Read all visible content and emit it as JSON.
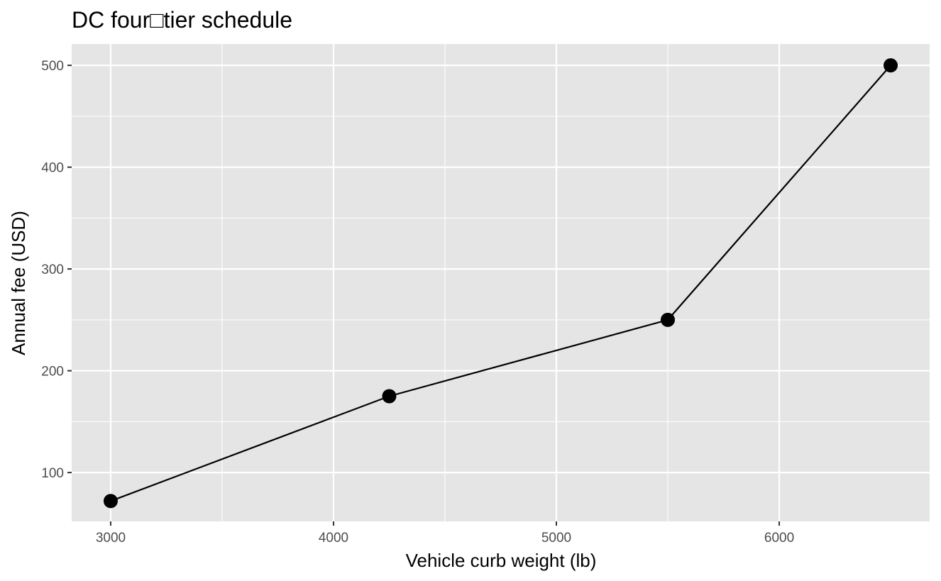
{
  "chart_data": {
    "type": "line",
    "title": "DC four□tier schedule",
    "xlabel": "Vehicle curb weight (lb)",
    "ylabel": "Annual fee (USD)",
    "x": [
      3000,
      4250,
      5500,
      6500
    ],
    "y": [
      72,
      175,
      250,
      500
    ],
    "xlim": [
      2825,
      6675
    ],
    "ylim": [
      52,
      521
    ],
    "xticks": [
      3000,
      4000,
      5000,
      6000
    ],
    "yticks": [
      100,
      200,
      300,
      400,
      500
    ],
    "xtick_labels": [
      "3000",
      "4000",
      "5000",
      "6000"
    ],
    "ytick_labels": [
      "100",
      "200",
      "300",
      "400",
      "500"
    ],
    "grid": true,
    "legend": "none",
    "line_color": "#000000",
    "panel_color": "#e5e5e5"
  }
}
